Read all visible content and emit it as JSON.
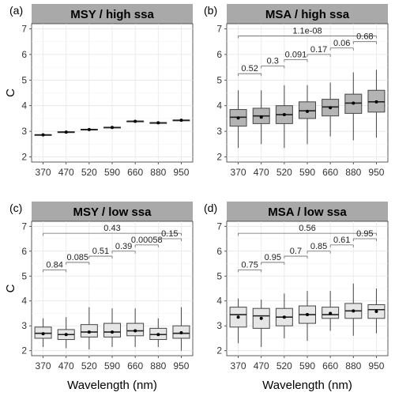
{
  "figure": {
    "y_label": "C",
    "x_label": "Wavelength (nm)"
  },
  "chart_data": [
    {
      "type": "boxplot",
      "panel_label": "(a)",
      "title": "MSY / high ssa",
      "categories": [
        "370",
        "470",
        "520",
        "590",
        "660",
        "880",
        "950"
      ],
      "ylim": [
        1.8,
        7.2
      ],
      "yticks": [
        2,
        3,
        4,
        5,
        6,
        7
      ],
      "box_fill": "#c8c8c8",
      "series": [
        {
          "min": 2.84,
          "q1": 2.85,
          "median": 2.86,
          "q3": 2.87,
          "max": 2.88,
          "mean": 2.86
        },
        {
          "min": 2.95,
          "q1": 2.96,
          "median": 2.97,
          "q3": 2.98,
          "max": 2.99,
          "mean": 2.97
        },
        {
          "min": 3.05,
          "q1": 3.06,
          "median": 3.07,
          "q3": 3.08,
          "max": 3.09,
          "mean": 3.07
        },
        {
          "min": 3.13,
          "q1": 3.14,
          "median": 3.15,
          "q3": 3.16,
          "max": 3.17,
          "mean": 3.15
        },
        {
          "min": 3.37,
          "q1": 3.38,
          "median": 3.39,
          "q3": 3.4,
          "max": 3.41,
          "mean": 3.39
        },
        {
          "min": 3.31,
          "q1": 3.32,
          "median": 3.33,
          "q3": 3.34,
          "max": 3.35,
          "mean": 3.33
        },
        {
          "min": 3.41,
          "q1": 3.42,
          "median": 3.43,
          "q3": 3.44,
          "max": 3.45,
          "mean": 3.43
        }
      ],
      "comparisons": []
    },
    {
      "type": "boxplot",
      "panel_label": "(b)",
      "title": "MSA / high ssa",
      "categories": [
        "370",
        "470",
        "520",
        "590",
        "660",
        "880",
        "950"
      ],
      "ylim": [
        1.8,
        7.2
      ],
      "yticks": [
        2,
        3,
        4,
        5,
        6,
        7
      ],
      "box_fill": "#b4b4b4",
      "series": [
        {
          "min": 2.35,
          "q1": 3.2,
          "median": 3.55,
          "q3": 3.85,
          "max": 4.6,
          "mean": 3.52
        },
        {
          "min": 2.5,
          "q1": 3.3,
          "median": 3.6,
          "q3": 3.9,
          "max": 4.6,
          "mean": 3.55
        },
        {
          "min": 2.35,
          "q1": 3.3,
          "median": 3.65,
          "q3": 4.0,
          "max": 4.8,
          "mean": 3.65
        },
        {
          "min": 2.5,
          "q1": 3.5,
          "median": 3.8,
          "q3": 4.15,
          "max": 4.8,
          "mean": 3.78
        },
        {
          "min": 2.8,
          "q1": 3.6,
          "median": 3.95,
          "q3": 4.25,
          "max": 4.9,
          "mean": 3.92
        },
        {
          "min": 2.65,
          "q1": 3.7,
          "median": 4.1,
          "q3": 4.45,
          "max": 5.3,
          "mean": 4.1
        },
        {
          "min": 2.75,
          "q1": 3.75,
          "median": 4.15,
          "q3": 4.6,
          "max": 5.4,
          "mean": 4.15
        }
      ],
      "comparisons": [
        {
          "from": 0,
          "to": 6,
          "y": 6.72,
          "label": "1.1e-08"
        },
        {
          "from": 0,
          "to": 1,
          "y": 5.25,
          "label": "0.52"
        },
        {
          "from": 1,
          "to": 2,
          "y": 5.55,
          "label": "0.3"
        },
        {
          "from": 2,
          "to": 3,
          "y": 5.8,
          "label": "0.091"
        },
        {
          "from": 3,
          "to": 4,
          "y": 6.0,
          "label": "0.17"
        },
        {
          "from": 4,
          "to": 5,
          "y": 6.25,
          "label": "0.06"
        },
        {
          "from": 5,
          "to": 6,
          "y": 6.5,
          "label": "0.68"
        }
      ]
    },
    {
      "type": "boxplot",
      "panel_label": "(c)",
      "title": "MSY / low ssa",
      "categories": [
        "370",
        "470",
        "520",
        "590",
        "660",
        "880",
        "950"
      ],
      "ylim": [
        1.8,
        7.2
      ],
      "yticks": [
        2,
        3,
        4,
        5,
        6,
        7
      ],
      "box_fill": "#e6e6e6",
      "series": [
        {
          "min": 2.15,
          "q1": 2.5,
          "median": 2.7,
          "q3": 2.95,
          "max": 3.3,
          "mean": 2.68
        },
        {
          "min": 2.1,
          "q1": 2.45,
          "median": 2.65,
          "q3": 2.85,
          "max": 3.35,
          "mean": 2.65
        },
        {
          "min": 2.05,
          "q1": 2.55,
          "median": 2.75,
          "q3": 3.05,
          "max": 3.75,
          "mean": 2.75
        },
        {
          "min": 2.15,
          "q1": 2.55,
          "median": 2.75,
          "q3": 3.1,
          "max": 3.7,
          "mean": 2.75
        },
        {
          "min": 2.15,
          "q1": 2.6,
          "median": 2.8,
          "q3": 3.1,
          "max": 3.7,
          "mean": 2.8
        },
        {
          "min": 2.15,
          "q1": 2.45,
          "median": 2.65,
          "q3": 2.9,
          "max": 3.3,
          "mean": 2.65
        },
        {
          "min": 2.0,
          "q1": 2.5,
          "median": 2.7,
          "q3": 3.0,
          "max": 3.75,
          "mean": 2.72
        }
      ],
      "comparisons": [
        {
          "from": 0,
          "to": 6,
          "y": 6.72,
          "label": "0.43"
        },
        {
          "from": 0,
          "to": 1,
          "y": 5.25,
          "label": "0.84"
        },
        {
          "from": 1,
          "to": 2,
          "y": 5.55,
          "label": "0.085"
        },
        {
          "from": 2,
          "to": 3,
          "y": 5.8,
          "label": "0.51"
        },
        {
          "from": 3,
          "to": 4,
          "y": 6.0,
          "label": "0.39"
        },
        {
          "from": 4,
          "to": 5,
          "y": 6.25,
          "label": "0.00058"
        },
        {
          "from": 5,
          "to": 6,
          "y": 6.5,
          "label": "0.15"
        }
      ]
    },
    {
      "type": "boxplot",
      "panel_label": "(d)",
      "title": "MSA / low ssa",
      "categories": [
        "370",
        "470",
        "520",
        "590",
        "660",
        "880",
        "950"
      ],
      "ylim": [
        1.8,
        7.2
      ],
      "yticks": [
        2,
        3,
        4,
        5,
        6,
        7
      ],
      "box_fill": "#e6e6e6",
      "series": [
        {
          "min": 2.3,
          "q1": 2.95,
          "median": 3.45,
          "q3": 3.75,
          "max": 4.1,
          "mean": 3.35
        },
        {
          "min": 2.15,
          "q1": 2.9,
          "median": 3.4,
          "q3": 3.7,
          "max": 4.05,
          "mean": 3.3
        },
        {
          "min": 2.5,
          "q1": 3.0,
          "median": 3.35,
          "q3": 3.7,
          "max": 4.3,
          "mean": 3.35
        },
        {
          "min": 2.4,
          "q1": 3.1,
          "median": 3.45,
          "q3": 3.8,
          "max": 4.4,
          "mean": 3.45
        },
        {
          "min": 2.8,
          "q1": 3.3,
          "median": 3.45,
          "q3": 3.75,
          "max": 4.4,
          "mean": 3.5
        },
        {
          "min": 2.6,
          "q1": 3.3,
          "median": 3.6,
          "q3": 3.9,
          "max": 4.7,
          "mean": 3.6
        },
        {
          "min": 2.7,
          "q1": 3.3,
          "median": 3.65,
          "q3": 3.85,
          "max": 4.5,
          "mean": 3.58
        }
      ],
      "comparisons": [
        {
          "from": 0,
          "to": 6,
          "y": 6.72,
          "label": "0.56"
        },
        {
          "from": 0,
          "to": 1,
          "y": 5.25,
          "label": "0.75"
        },
        {
          "from": 1,
          "to": 2,
          "y": 5.55,
          "label": "0.95"
        },
        {
          "from": 2,
          "to": 3,
          "y": 5.8,
          "label": "0.7"
        },
        {
          "from": 3,
          "to": 4,
          "y": 6.0,
          "label": "0.85"
        },
        {
          "from": 4,
          "to": 5,
          "y": 6.25,
          "label": "0.61"
        },
        {
          "from": 5,
          "to": 6,
          "y": 6.5,
          "label": "0.95"
        }
      ]
    }
  ]
}
